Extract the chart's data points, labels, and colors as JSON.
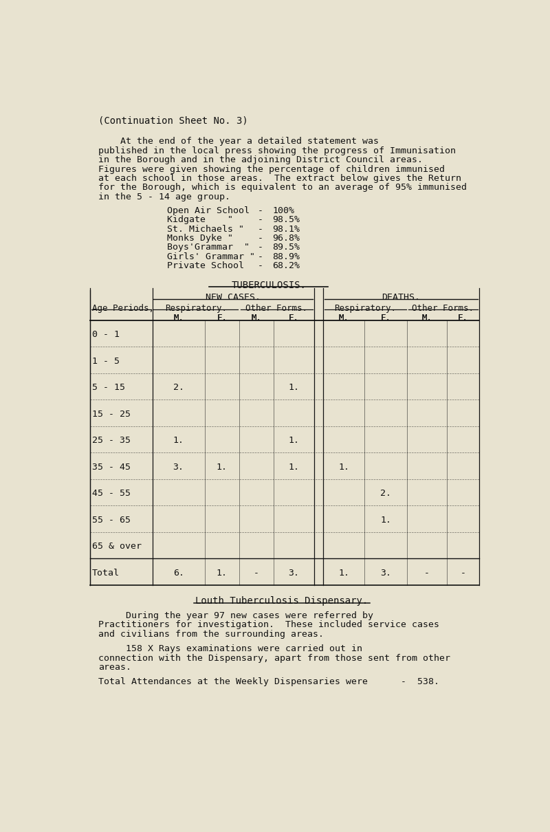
{
  "bg_color": "#e8e3d0",
  "text_color": "#111111",
  "page_title": "(Continuation Sheet No. 3)",
  "para1_indent": "    At the end of the year a detailed statement was",
  "para1_lines": [
    "    At the end of the year a detailed statement was",
    "published in the local press showing the progress of Immunisation",
    "in the Borough and in the adjoining District Council areas.",
    "Figures were given showing the percentage of children immunised",
    "at each school in those areas.  The extract below gives the Return",
    "for the Borough, which is equivalent to an average of 95% immunised",
    "in the 5 - 14 age group."
  ],
  "schools": [
    [
      "Open Air School  ",
      "-",
      "100%"
    ],
    [
      "Kidgate    \"     ",
      "-",
      "98.5%"
    ],
    [
      "St. Michaels \"   ",
      "-",
      "98.1%"
    ],
    [
      "Monks Dyke \"     ",
      "-",
      "96.8%"
    ],
    [
      "Boys'Grammar  \"  ",
      "-",
      "89.5%"
    ],
    [
      "Girls' Grammar \" ",
      "-",
      "88.9%"
    ],
    [
      "Private School   ",
      "-",
      "68.2%"
    ]
  ],
  "tb_title": "TUBERCULOSIS.",
  "age_rows": [
    {
      "age": "0 - 1",
      "v": [
        "",
        "",
        "",
        "",
        "",
        "",
        "",
        ""
      ]
    },
    {
      "age": "1 - 5",
      "v": [
        "",
        "",
        "",
        "",
        "",
        "",
        "",
        ""
      ]
    },
    {
      "age": "5 - 15",
      "v": [
        "2.",
        "",
        "",
        "1.",
        "",
        "",
        "",
        ""
      ]
    },
    {
      "age": "15 - 25",
      "v": [
        "",
        "",
        "",
        "",
        "",
        "",
        "",
        ""
      ]
    },
    {
      "age": "25 - 35",
      "v": [
        "1.",
        "",
        "",
        "1.",
        "",
        "",
        "",
        ""
      ]
    },
    {
      "age": "35 - 45",
      "v": [
        "3.",
        "1.",
        "",
        "1.",
        "1.",
        "",
        "",
        ""
      ]
    },
    {
      "age": "45 - 55",
      "v": [
        "",
        "",
        "",
        "",
        "",
        "2.",
        "",
        ""
      ]
    },
    {
      "age": "55 - 65",
      "v": [
        "",
        "",
        "",
        "",
        "",
        "1.",
        "",
        ""
      ]
    },
    {
      "age": "65 & over",
      "v": [
        "",
        "",
        "",
        "",
        "",
        "",
        "",
        ""
      ]
    },
    {
      "age": "Total",
      "v": [
        "6.",
        "1.",
        "-",
        "3.",
        "1.",
        "3.",
        "-",
        "-"
      ]
    }
  ],
  "dispensary_title": "Louth Tuberculosis Dispensary.",
  "disp_para1": [
    "     During the year 97 new cases were referred by",
    "Practitioners for investigation.  These included service cases",
    "and civilians from the surrounding areas."
  ],
  "disp_para2": [
    "     158 X Rays examinations were carried out in",
    "connection with the Dispensary, apart from those sent from other",
    "areas."
  ],
  "disp_para3": "Total Attendances at the Weekly Dispensaries were      -  538."
}
